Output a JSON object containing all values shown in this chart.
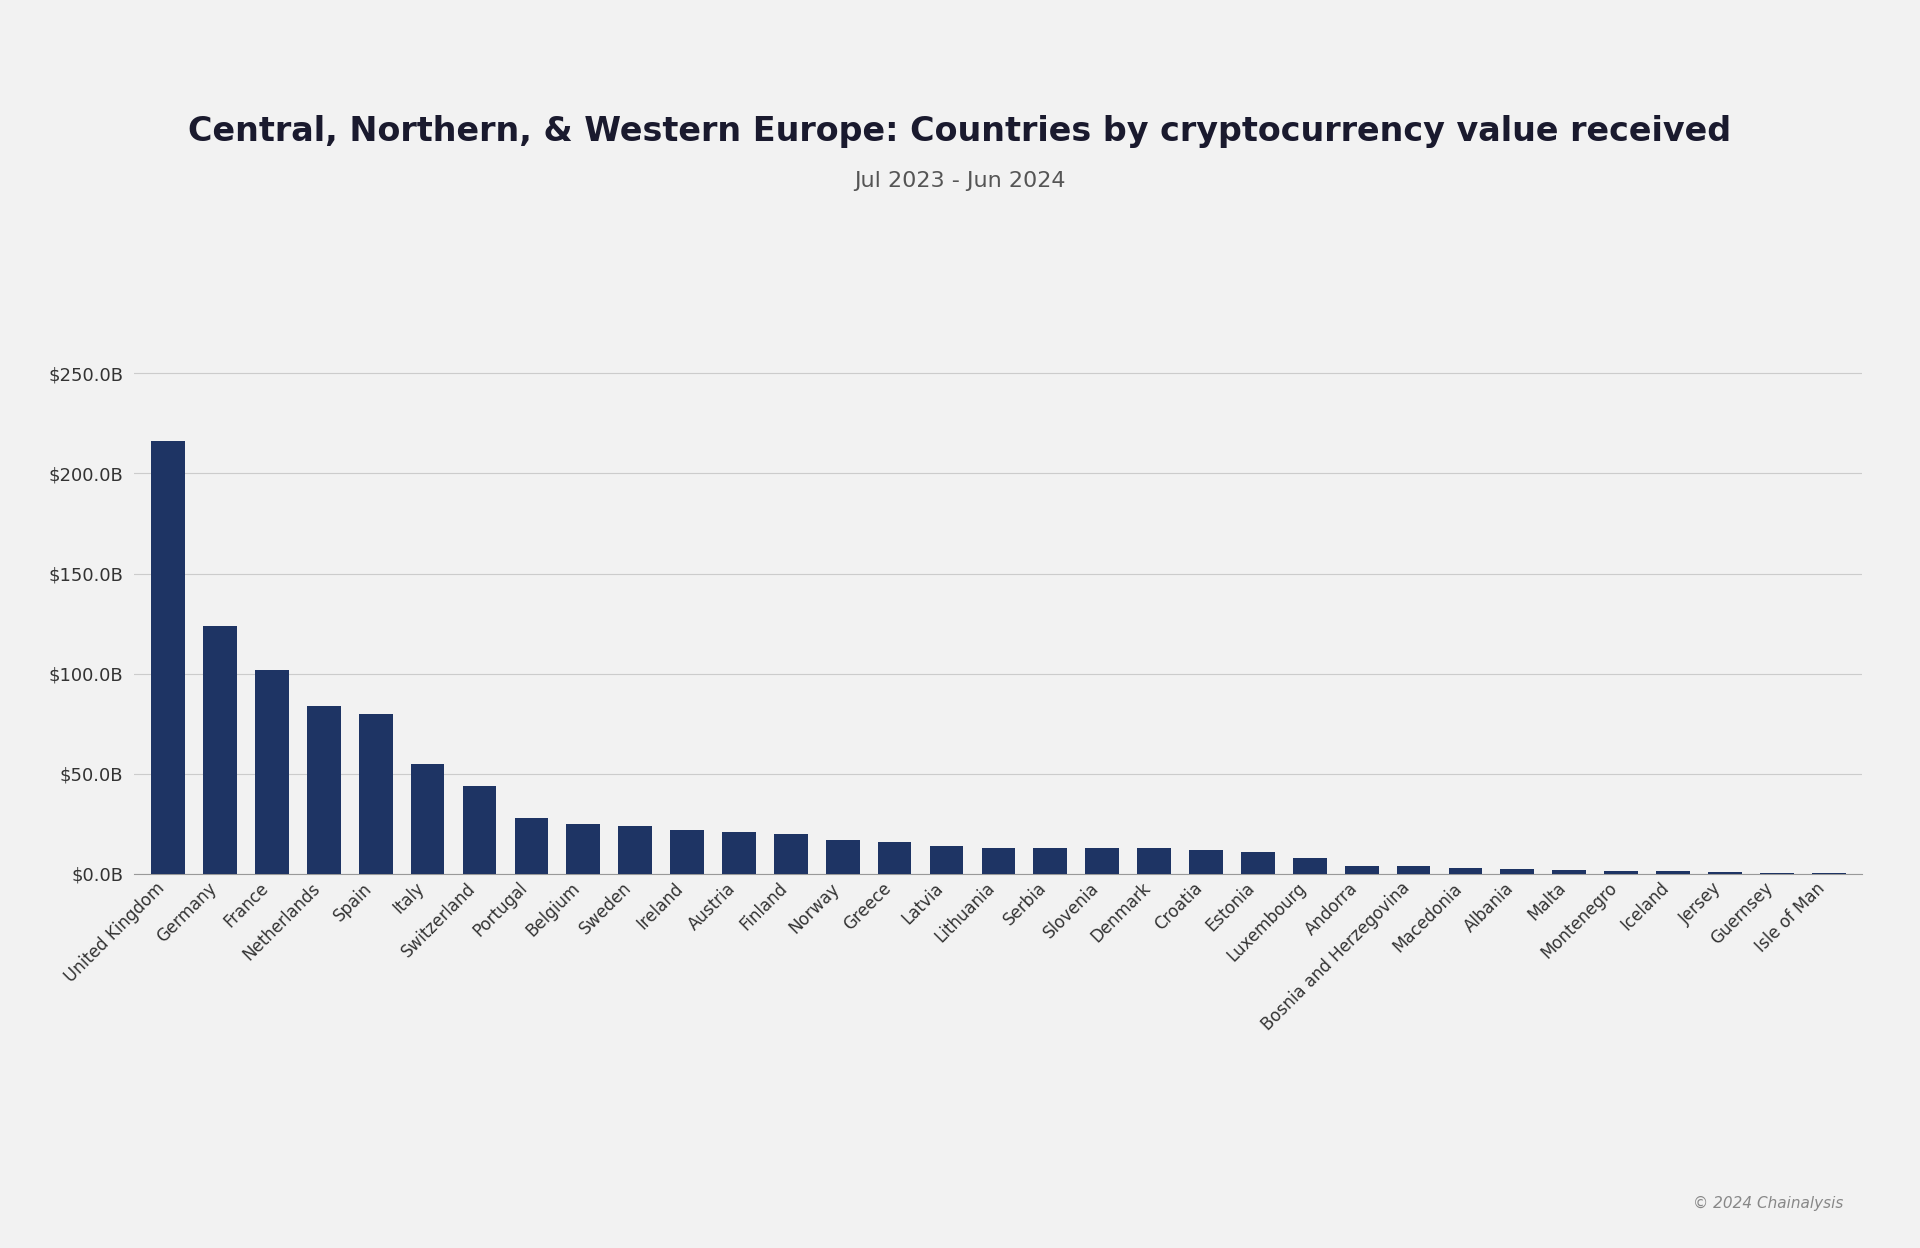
{
  "title": "Central, Northern, & Western Europe: Countries by cryptocurrency value received",
  "subtitle": "Jul 2023 - Jun 2024",
  "background_color": "#f2f2f2",
  "bar_color": "#1e3464",
  "copyright": "© 2024 Chainalysis",
  "categories": [
    "United Kingdom",
    "Germany",
    "France",
    "Netherlands",
    "Spain",
    "Italy",
    "Switzerland",
    "Portugal",
    "Belgium",
    "Sweden",
    "Ireland",
    "Austria",
    "Finland",
    "Norway",
    "Greece",
    "Latvia",
    "Lithuania",
    "Serbia",
    "Slovenia",
    "Denmark",
    "Croatia",
    "Estonia",
    "Luxembourg",
    "Andorra",
    "Bosnia and Herzegovina",
    "Macedonia",
    "Albania",
    "Malta",
    "Montenegro",
    "Iceland",
    "Jersey",
    "Guernsey",
    "Isle of Man"
  ],
  "values": [
    216,
    124,
    102,
    84,
    80,
    55,
    44,
    28,
    25,
    24,
    22,
    21,
    20,
    17,
    16,
    14,
    13,
    13,
    13,
    13,
    12,
    11,
    8,
    4,
    4,
    3,
    2.5,
    1.8,
    1.5,
    1.2,
    0.8,
    0.5,
    0.4
  ],
  "ylim": [
    0,
    262
  ],
  "yticks": [
    0,
    50,
    100,
    150,
    200,
    250
  ],
  "ytick_labels": [
    "$0.0B",
    "$50.0B",
    "$100.0B",
    "$150.0B",
    "$200.0B",
    "$250.0B"
  ],
  "title_fontsize": 24,
  "subtitle_fontsize": 16,
  "tick_fontsize": 13,
  "xlabel_fontsize": 12
}
